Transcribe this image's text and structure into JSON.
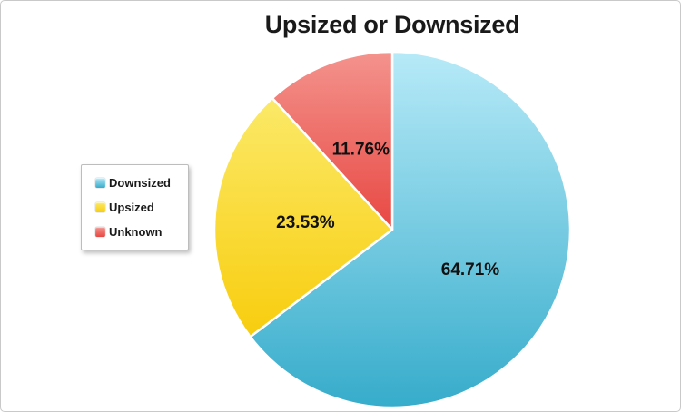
{
  "chart_data": {
    "type": "pie",
    "title": "Upsized or Downsized",
    "start_angle_deg": 0,
    "direction": "clockwise",
    "legend_position": "left",
    "grid": false,
    "label_color": "#111111",
    "background_color": "#ffffff",
    "border_color": "#c9c9c9",
    "series": [
      {
        "name": "Downsized",
        "value": 64.71,
        "label": "64.71%",
        "color": "#45B6D4",
        "gradient_light": "#B7EAF8",
        "gradient_dark": "#36ACCB"
      },
      {
        "name": "Upsized",
        "value": 23.53,
        "label": "23.53%",
        "color": "#F9CF11",
        "gradient_light": "#FBE968",
        "gradient_dark": "#F8CD0E"
      },
      {
        "name": "Unknown",
        "value": 11.76,
        "label": "11.76%",
        "color": "#E8473F",
        "gradient_light": "#F4938D",
        "gradient_dark": "#E84843"
      }
    ]
  }
}
